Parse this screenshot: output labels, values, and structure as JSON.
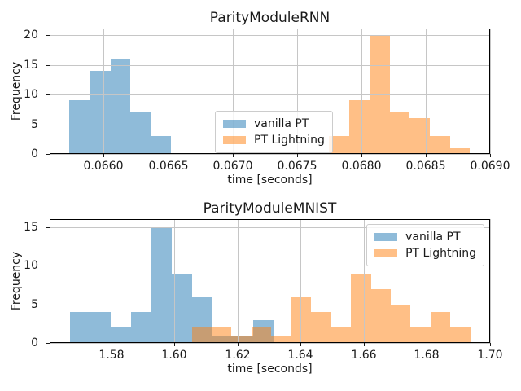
{
  "chart_data": [
    {
      "type": "bar",
      "subtype": "histogram",
      "title": "ParityModuleRNN",
      "xlabel": "time [seconds]",
      "ylabel": "Frequency",
      "xlim": [
        0.06558,
        0.069
      ],
      "ylim": [
        0,
        21.1
      ],
      "grid": true,
      "legend_position": "lower center",
      "xticks": [
        {
          "v": 0.066,
          "label": "0.0660"
        },
        {
          "v": 0.0665,
          "label": "0.0665"
        },
        {
          "v": 0.067,
          "label": "0.0670"
        },
        {
          "v": 0.0675,
          "label": "0.0675"
        },
        {
          "v": 0.068,
          "label": "0.0680"
        },
        {
          "v": 0.0685,
          "label": "0.0685"
        },
        {
          "v": 0.069,
          "label": "0.0690"
        }
      ],
      "yticks": [
        {
          "v": 0,
          "label": "0"
        },
        {
          "v": 5,
          "label": "5"
        },
        {
          "v": 10,
          "label": "10"
        },
        {
          "v": 15,
          "label": "15"
        },
        {
          "v": 20,
          "label": "20"
        }
      ],
      "series": [
        {
          "name": "vanilla PT",
          "color": "#1f77b4",
          "alpha": 0.5,
          "bin_edges": [
            0.065734,
            0.065892,
            0.066051,
            0.066209,
            0.066367,
            0.066525
          ],
          "counts": [
            9,
            14,
            16,
            7,
            3
          ]
        },
        {
          "name": "PT Lightning",
          "color": "#ff7f0e",
          "alpha": 0.5,
          "bin_edges": [
            0.067751,
            0.067907,
            0.068063,
            0.068221,
            0.068377,
            0.068531,
            0.068689,
            0.068843
          ],
          "counts": [
            3,
            9,
            20,
            7,
            6,
            3,
            1
          ]
        }
      ]
    },
    {
      "type": "bar",
      "subtype": "histogram",
      "title": "ParityModuleMNIST",
      "xlabel": "time [seconds]",
      "ylabel": "Frequency",
      "xlim": [
        1.5604,
        1.7
      ],
      "ylim": [
        0,
        16
      ],
      "grid": true,
      "legend_position": "upper right",
      "xticks": [
        {
          "v": 1.58,
          "label": "1.58"
        },
        {
          "v": 1.6,
          "label": "1.60"
        },
        {
          "v": 1.62,
          "label": "1.62"
        },
        {
          "v": 1.64,
          "label": "1.64"
        },
        {
          "v": 1.66,
          "label": "1.66"
        },
        {
          "v": 1.68,
          "label": "1.68"
        },
        {
          "v": 1.7,
          "label": "1.70"
        }
      ],
      "yticks": [
        {
          "v": 0,
          "label": "0"
        },
        {
          "v": 5,
          "label": "5"
        },
        {
          "v": 10,
          "label": "10"
        },
        {
          "v": 15,
          "label": "15"
        }
      ],
      "series": [
        {
          "name": "vanilla PT",
          "color": "#1f77b4",
          "alpha": 0.5,
          "bin_edges": [
            1.56677,
            1.57322,
            1.57966,
            1.58611,
            1.59256,
            1.59901,
            1.60545,
            1.6119,
            1.61835,
            1.62479,
            1.63124
          ],
          "counts": [
            4,
            4,
            2,
            4,
            15,
            9,
            6,
            1,
            1,
            3
          ]
        },
        {
          "name": "PT Lightning",
          "color": "#ff7f0e",
          "alpha": 0.5,
          "bin_edges": [
            1.60545,
            1.61176,
            1.61806,
            1.62437,
            1.63067,
            1.63698,
            1.64328,
            1.64959,
            1.65589,
            1.6622,
            1.6685,
            1.67481,
            1.68111,
            1.68742,
            1.69372
          ],
          "counts": [
            2,
            2,
            1,
            2,
            1,
            6,
            4,
            2,
            9,
            7,
            5,
            2,
            4,
            2
          ]
        }
      ]
    }
  ],
  "colors": {
    "grid": "#c6c6c6",
    "spine": "#000000",
    "legend_border": "#cccccc"
  }
}
